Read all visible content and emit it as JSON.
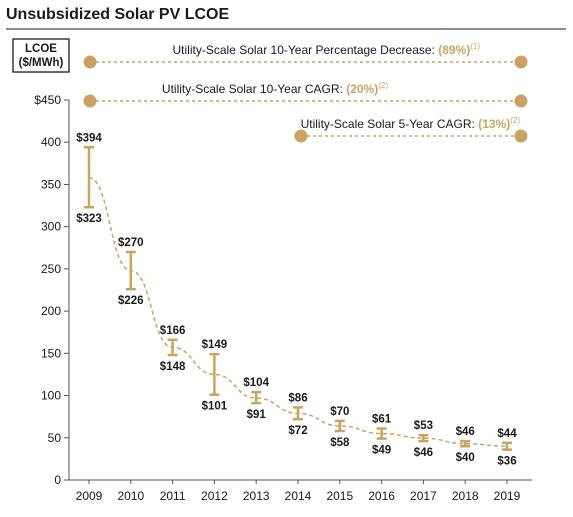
{
  "title": "Unsubsidized Solar PV LCOE",
  "colors": {
    "accent": "#c9a461",
    "text": "#1a1a1a",
    "axis": "#555555",
    "rule": "#1a1a1a"
  },
  "chart_data": {
    "type": "range",
    "ylabel_lines": [
      "LCOE",
      "($/MWh)"
    ],
    "ylim": [
      0,
      450
    ],
    "yticks": [
      "$450",
      "400",
      "350",
      "300",
      "250",
      "200",
      "150",
      "100",
      "50",
      "0"
    ],
    "categories": [
      "2009",
      "2010",
      "2011",
      "2012",
      "2013",
      "2014",
      "2015",
      "2016",
      "2017",
      "2018",
      "2019"
    ],
    "high": [
      394,
      270,
      166,
      149,
      104,
      86,
      70,
      61,
      53,
      46,
      44
    ],
    "low": [
      323,
      226,
      148,
      101,
      91,
      72,
      58,
      49,
      46,
      40,
      36
    ],
    "high_labels": [
      "$394",
      "$270",
      "$166",
      "$149",
      "$104",
      "$86",
      "$70",
      "$61",
      "$53",
      "$46",
      "$44"
    ],
    "low_labels": [
      "$323",
      "$226",
      "$148",
      "$101",
      "$91",
      "$72",
      "$58",
      "$49",
      "$46",
      "$40",
      "$36"
    ],
    "trend": [
      358,
      248,
      157,
      125,
      97,
      79,
      64,
      55,
      49.5,
      43,
      40
    ],
    "annotations": [
      {
        "label": "Utility-Scale Solar 10-Year Percentage Decrease:",
        "value": "(89%)",
        "note": "(1)",
        "from": "2009",
        "to": "2019"
      },
      {
        "label": "Utility-Scale Solar 10-Year CAGR:",
        "value": "(20%)",
        "note": "(2)",
        "from": "2009",
        "to": "2019"
      },
      {
        "label": "Utility-Scale Solar 5-Year CAGR:",
        "value": "(13%)",
        "note": "(2)",
        "from": "2014",
        "to": "2019"
      }
    ]
  }
}
